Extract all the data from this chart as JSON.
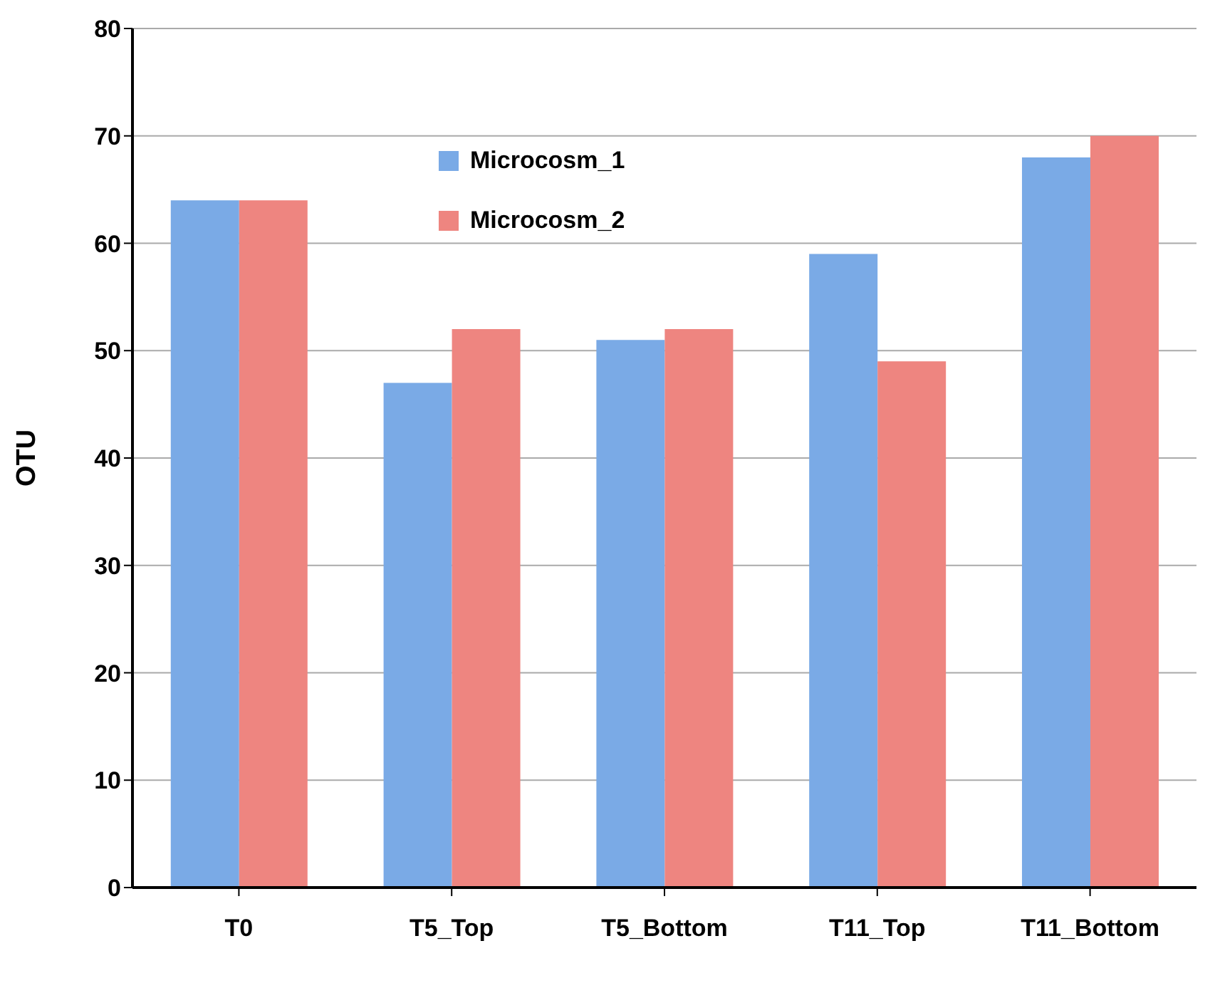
{
  "chart_data": {
    "type": "bar",
    "ylabel": "OTU",
    "categories": [
      "T0",
      "T5_Top",
      "T5_Bottom",
      "T11_Top",
      "T11_Bottom"
    ],
    "series": [
      {
        "name": "Microcosm_1",
        "color": "#7aaae6",
        "values": [
          64,
          47,
          51,
          59,
          68
        ]
      },
      {
        "name": "Microcosm_2",
        "color": "#ee8580",
        "values": [
          64,
          52,
          52,
          49,
          70
        ]
      }
    ],
    "ylim": [
      0,
      80
    ],
    "yticks": [
      0,
      10,
      20,
      30,
      40,
      50,
      60,
      70,
      80
    ],
    "grid": "y",
    "legend": "top center"
  }
}
